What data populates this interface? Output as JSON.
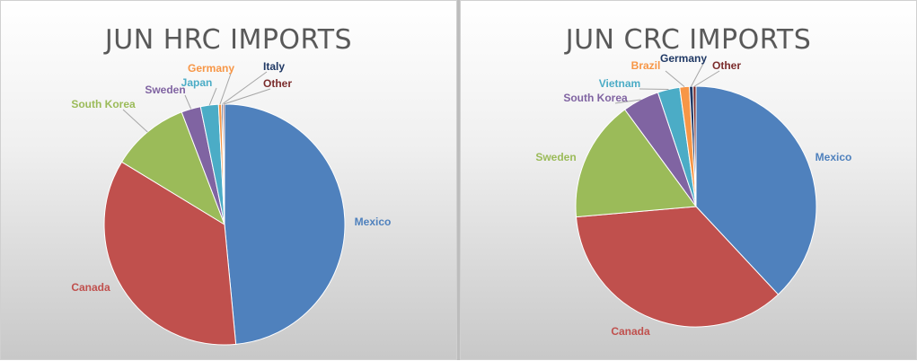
{
  "chart_data": [
    {
      "type": "pie",
      "title": "JUN HRC IMPORTS",
      "slices": [
        {
          "name": "Mexico",
          "value": 48.5,
          "color": "#4f81bd"
        },
        {
          "name": "Canada",
          "value": 35.2,
          "color": "#c0504d"
        },
        {
          "name": "South Korea",
          "value": 10.5,
          "color": "#9bbb59"
        },
        {
          "name": "Sweden",
          "value": 2.6,
          "color": "#8064a2"
        },
        {
          "name": "Japan",
          "value": 2.4,
          "color": "#4bacc6"
        },
        {
          "name": "Germany",
          "value": 0.4,
          "color": "#f79646"
        },
        {
          "name": "Italy",
          "value": 0.2,
          "color": "#1f3864"
        },
        {
          "name": "Other",
          "value": 0.2,
          "color": "#7b2c2c"
        }
      ]
    },
    {
      "type": "pie",
      "title": "JUN CRC IMPORTS",
      "slices": [
        {
          "name": "Mexico",
          "value": 38.5,
          "color": "#4f81bd"
        },
        {
          "name": "Canada",
          "value": 36.0,
          "color": "#c0504d"
        },
        {
          "name": "Sweden",
          "value": 16.5,
          "color": "#9bbb59"
        },
        {
          "name": "South Korea",
          "value": 5.0,
          "color": "#8064a2"
        },
        {
          "name": "Vietnam",
          "value": 3.0,
          "color": "#4bacc6"
        },
        {
          "name": "Brazil",
          "value": 1.3,
          "color": "#f79646"
        },
        {
          "name": "Germany",
          "value": 0.5,
          "color": "#1f3864"
        },
        {
          "name": "Other",
          "value": 0.4,
          "color": "#7b2c2c"
        }
      ]
    }
  ]
}
